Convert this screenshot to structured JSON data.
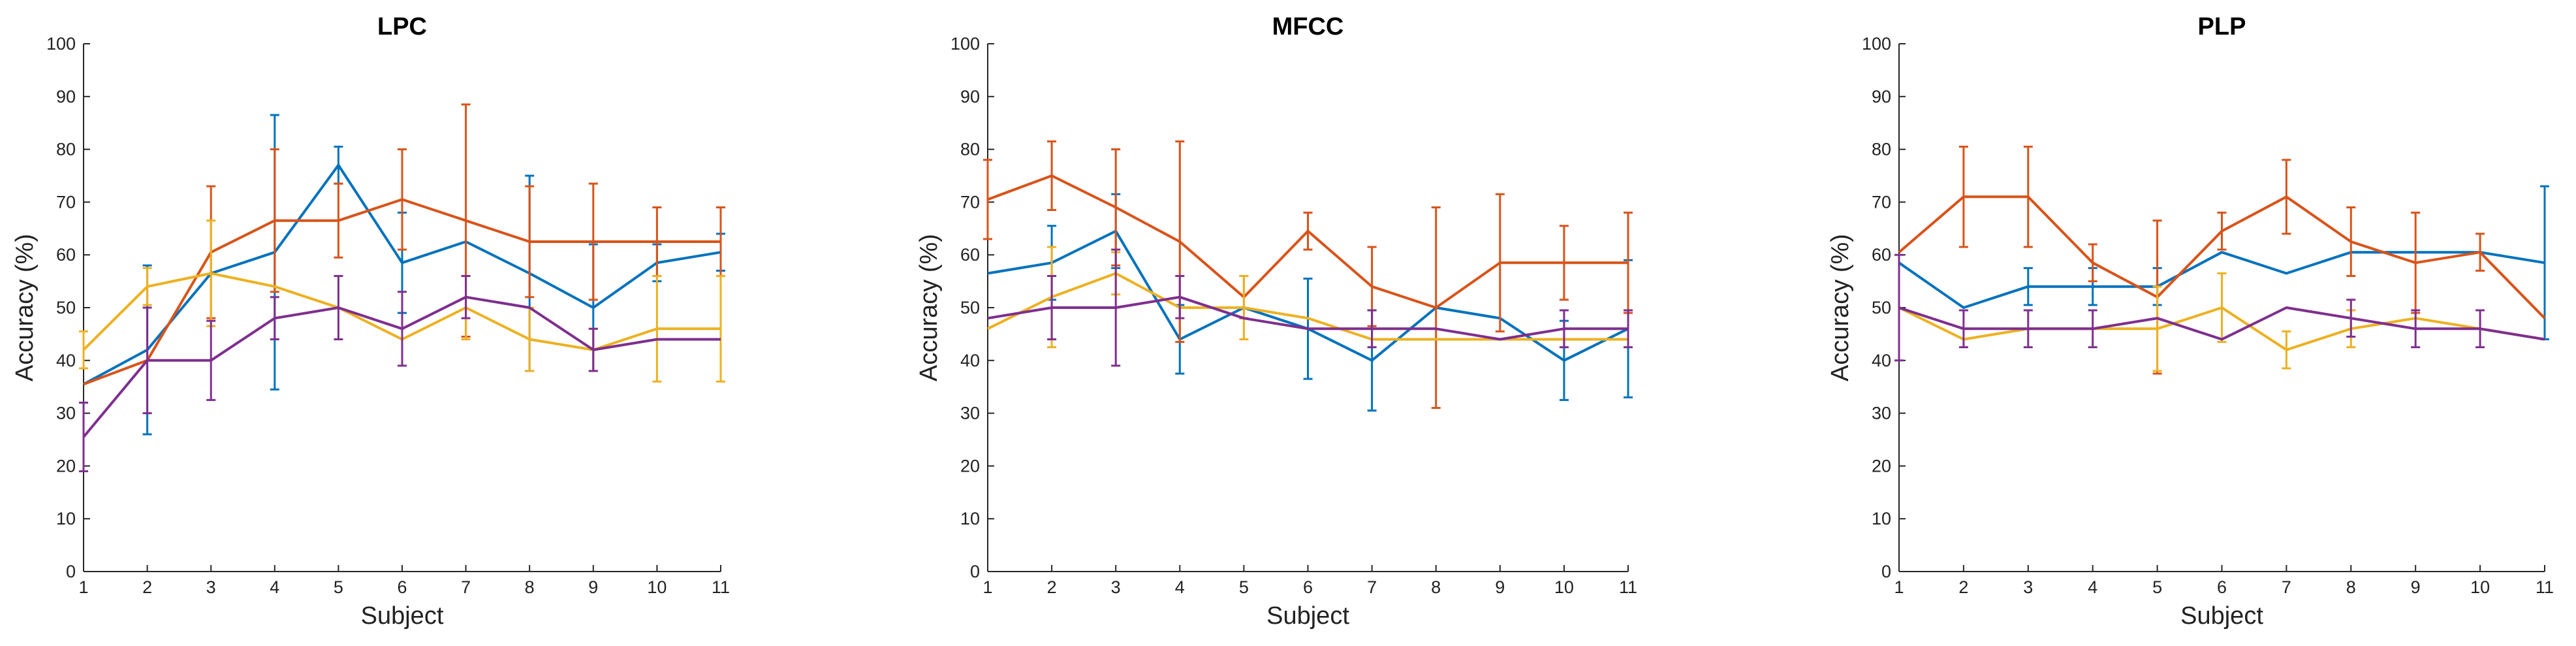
{
  "colors": {
    "series1": "#0072BD",
    "series2": "#D95319",
    "series3": "#EDB120",
    "series4": "#7E2F8E"
  },
  "chart_data": [
    {
      "type": "line",
      "title": "LPC",
      "xlabel": "Subject",
      "ylabel": "Accuracy (%)",
      "x": [
        1,
        2,
        3,
        4,
        5,
        6,
        7,
        8,
        9,
        10,
        11
      ],
      "xlim": [
        1,
        11
      ],
      "ylim": [
        0,
        100
      ],
      "yticks": [
        0,
        10,
        20,
        30,
        40,
        50,
        60,
        70,
        80,
        90,
        100
      ],
      "series": [
        {
          "name": "series1",
          "color": "#0072BD",
          "values": [
            35.5,
            42,
            56.5,
            60.5,
            77,
            58.5,
            62.5,
            56.5,
            50,
            58.5,
            60.5
          ],
          "errors": [
            0,
            16,
            0,
            26,
            3.5,
            9.5,
            0,
            18.5,
            12,
            3.5,
            3.5
          ]
        },
        {
          "name": "series2",
          "color": "#D95319",
          "values": [
            35.5,
            40,
            60.5,
            66.5,
            66.5,
            70.5,
            66.5,
            62.5,
            62.5,
            62.5,
            62.5
          ],
          "errors": [
            0,
            0,
            12.5,
            13.5,
            7,
            9.5,
            22,
            10.5,
            11,
            6.5,
            6.5
          ]
        },
        {
          "name": "series3",
          "color": "#EDB120",
          "values": [
            42,
            54,
            56.5,
            54,
            50,
            44,
            50,
            44,
            42,
            46,
            46
          ],
          "errors": [
            3.5,
            3.5,
            10,
            0,
            0,
            0,
            6,
            6,
            4,
            10,
            10
          ]
        },
        {
          "name": "series4",
          "color": "#7E2F8E",
          "values": [
            25.5,
            40,
            40,
            48,
            50,
            46,
            52,
            50,
            42,
            44,
            44
          ],
          "errors": [
            6.5,
            10,
            7.5,
            4,
            6,
            7,
            4,
            0,
            4,
            0,
            0
          ]
        }
      ]
    },
    {
      "type": "line",
      "title": "MFCC",
      "xlabel": "Subject",
      "ylabel": "Accuracy (%)",
      "x": [
        1,
        2,
        3,
        4,
        5,
        6,
        7,
        8,
        9,
        10,
        11
      ],
      "xlim": [
        1,
        11
      ],
      "ylim": [
        0,
        100
      ],
      "yticks": [
        0,
        10,
        20,
        30,
        40,
        50,
        60,
        70,
        80,
        90,
        100
      ],
      "series": [
        {
          "name": "series1",
          "color": "#0072BD",
          "values": [
            56.5,
            58.5,
            64.5,
            44,
            50,
            46,
            40,
            50,
            48,
            40,
            46
          ],
          "errors": [
            0,
            7,
            7,
            6.5,
            0,
            9.5,
            9.5,
            0,
            0,
            7.5,
            13
          ]
        },
        {
          "name": "series2",
          "color": "#D95319",
          "values": [
            70.5,
            75,
            69,
            62.5,
            52,
            64.5,
            54,
            50,
            58.5,
            58.5,
            58.5
          ],
          "errors": [
            7.5,
            6.5,
            11,
            19,
            4,
            3.5,
            7.5,
            19,
            13,
            7,
            9.5
          ]
        },
        {
          "name": "series3",
          "color": "#EDB120",
          "values": [
            46,
            52,
            56.5,
            50,
            50,
            48,
            44,
            44,
            44,
            44,
            44
          ],
          "errors": [
            0,
            9.5,
            4,
            0,
            6,
            0,
            0,
            0,
            0,
            0,
            0
          ]
        },
        {
          "name": "series4",
          "color": "#7E2F8E",
          "values": [
            48,
            50,
            50,
            52,
            48,
            46,
            46,
            46,
            44,
            46,
            46
          ],
          "errors": [
            0,
            6,
            11,
            4,
            0,
            0,
            3.5,
            0,
            0,
            3.5,
            3.5
          ]
        }
      ]
    },
    {
      "type": "line",
      "title": "PLP",
      "xlabel": "Subject",
      "ylabel": "Accuracy (%)",
      "x": [
        1,
        2,
        3,
        4,
        5,
        6,
        7,
        8,
        9,
        10,
        11
      ],
      "xlim": [
        1,
        11
      ],
      "ylim": [
        0,
        100
      ],
      "yticks": [
        0,
        10,
        20,
        30,
        40,
        50,
        60,
        70,
        80,
        90,
        100
      ],
      "series": [
        {
          "name": "series1",
          "color": "#0072BD",
          "values": [
            58.5,
            50,
            54,
            54,
            54,
            60.5,
            56.5,
            60.5,
            60.5,
            60.5,
            58.5
          ],
          "errors": [
            0,
            0,
            3.5,
            3.5,
            3.5,
            0,
            0,
            0,
            0,
            0,
            14.5
          ]
        },
        {
          "name": "series2",
          "color": "#D95319",
          "values": [
            60.5,
            71,
            71,
            58.5,
            52,
            64.5,
            71,
            62.5,
            58.5,
            60.5,
            48
          ],
          "errors": [
            0,
            9.5,
            9.5,
            3.5,
            14.5,
            3.5,
            7,
            6.5,
            9.5,
            3.5,
            0
          ]
        },
        {
          "name": "series3",
          "color": "#EDB120",
          "values": [
            50,
            44,
            46,
            46,
            46,
            50,
            42,
            46,
            48,
            46,
            44
          ],
          "errors": [
            0,
            0,
            0,
            0,
            8,
            6.5,
            3.5,
            3.5,
            0,
            0,
            0
          ]
        },
        {
          "name": "series4",
          "color": "#7E2F8E",
          "values": [
            50,
            46,
            46,
            46,
            48,
            44,
            50,
            48,
            46,
            46,
            44
          ],
          "errors": [
            10,
            3.5,
            3.5,
            3.5,
            0,
            0,
            0,
            3.5,
            3.5,
            3.5,
            0
          ]
        }
      ]
    }
  ]
}
